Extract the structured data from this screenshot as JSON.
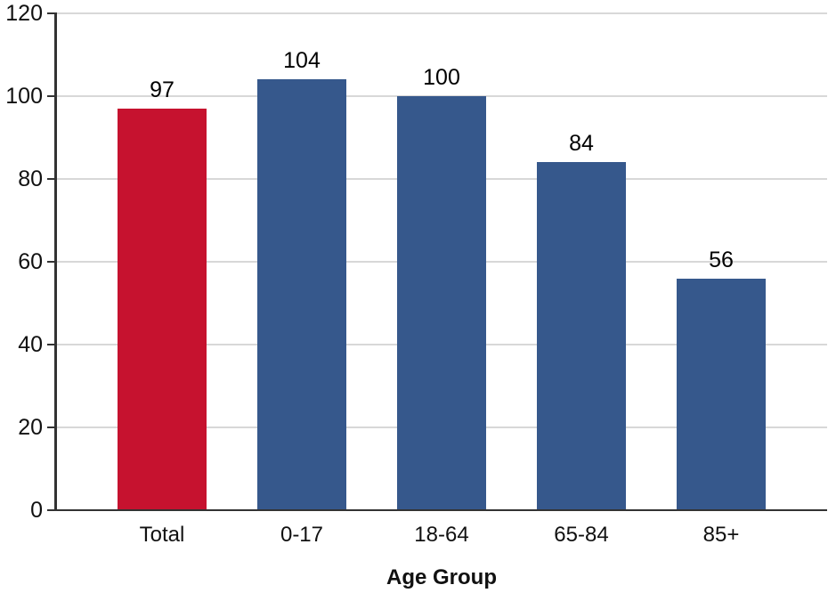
{
  "chart_data": {
    "type": "bar",
    "categories": [
      "Total",
      "0-17",
      "18-64",
      "65-84",
      "85+"
    ],
    "values": [
      97,
      104,
      100,
      84,
      56
    ],
    "value_labels": [
      "97",
      "104",
      "100",
      "84",
      "56"
    ],
    "bar_colors": [
      "#C6122F",
      "#36588C",
      "#36588C",
      "#36588C",
      "#36588C"
    ],
    "title": "",
    "xlabel": "Age Group",
    "ylabel": "",
    "ylim": [
      0,
      120
    ],
    "yticks": [
      0,
      20,
      40,
      60,
      80,
      100,
      120
    ],
    "grid": "horizontal",
    "legend_position": "none"
  },
  "colors": {
    "highlight_bar": "#C6122F",
    "default_bar": "#36588C",
    "gridline": "#D8D8D8",
    "axis": "#333333",
    "text": "#111111",
    "background": "#ffffff"
  }
}
